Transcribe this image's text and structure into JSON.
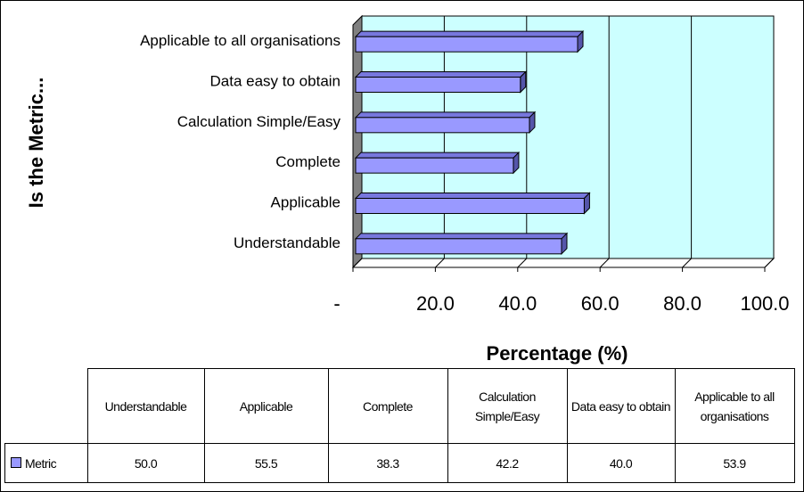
{
  "chart_data": {
    "type": "bar",
    "y_label": "Is the Metric...",
    "x_label": "Percentage (%)",
    "categories": [
      "Understandable",
      "Applicable",
      "Complete",
      "Calculation Simple/Easy",
      "Data easy to obtain",
      "Applicable to all organisations"
    ],
    "series": [
      {
        "name": "Metric",
        "color": "#9999ff",
        "values": [
          50.0,
          55.5,
          38.3,
          42.2,
          40.0,
          53.9
        ],
        "value_labels": [
          "50.0",
          "55.5",
          "38.3",
          "42.2",
          "40.0",
          "53.9"
        ]
      }
    ],
    "xlim": [
      0,
      100
    ],
    "xticks": [
      {
        "value": 0,
        "label": "-"
      },
      {
        "value": 20,
        "label": "20.0"
      },
      {
        "value": 40,
        "label": "40.0"
      },
      {
        "value": 60,
        "label": "60.0"
      },
      {
        "value": 80,
        "label": "80.0"
      },
      {
        "value": 100,
        "label": "100.0"
      }
    ],
    "grid": true
  }
}
